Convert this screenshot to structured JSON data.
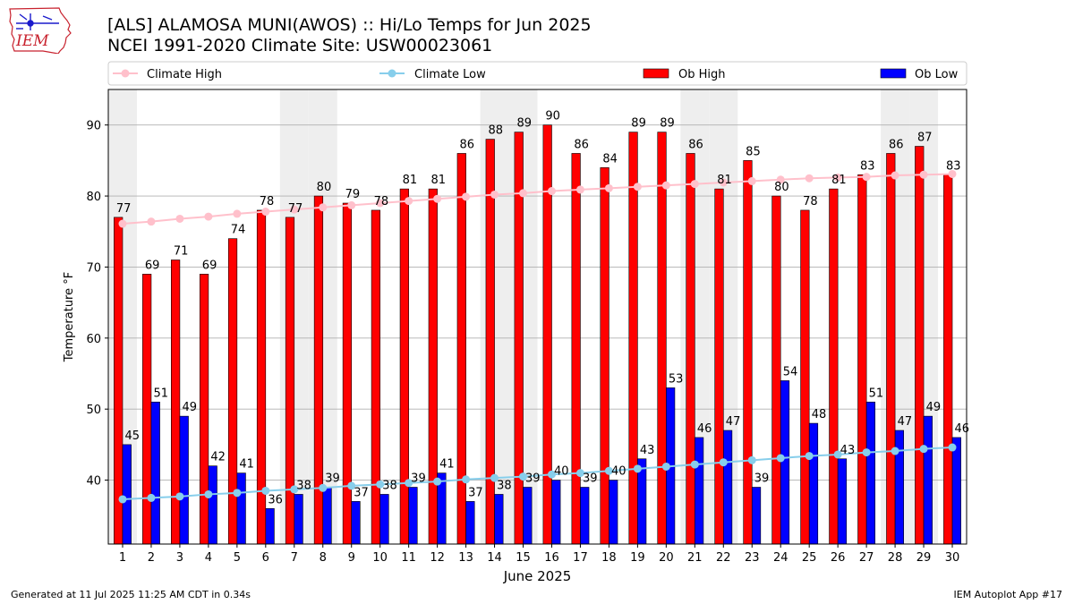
{
  "logo": {
    "text": "IEM",
    "colors": {
      "outline": "#c8222e",
      "text": "#c8222e",
      "glyph": "#1a1acc"
    }
  },
  "chart_data": {
    "type": "bar",
    "title": "[ALS] ALAMOSA MUNI(AWOS) :: Hi/Lo Temps for Jun 2025",
    "subtitle": "NCEI 1991-2020 Climate Site: USW00023061",
    "xlabel": "June 2025",
    "ylabel": "Temperature °F",
    "ylim": [
      31,
      95
    ],
    "yticks": [
      40,
      50,
      60,
      70,
      80,
      90
    ],
    "grid": "horizontal",
    "legend_placement": "top",
    "categories": [
      "1",
      "2",
      "3",
      "4",
      "5",
      "6",
      "7",
      "8",
      "9",
      "10",
      "11",
      "12",
      "13",
      "14",
      "15",
      "16",
      "17",
      "18",
      "19",
      "20",
      "21",
      "22",
      "23",
      "24",
      "25",
      "26",
      "27",
      "28",
      "29",
      "30"
    ],
    "shaded_days": [
      1,
      7,
      8,
      14,
      15,
      21,
      22,
      28,
      29
    ],
    "series": [
      {
        "name": "Climate High",
        "kind": "line",
        "color": "#ffc0cb",
        "values": [
          76.1,
          76.4,
          76.8,
          77.1,
          77.5,
          77.8,
          78.1,
          78.4,
          78.7,
          79.0,
          79.3,
          79.6,
          79.9,
          80.2,
          80.4,
          80.7,
          80.9,
          81.1,
          81.3,
          81.5,
          81.7,
          81.9,
          82.1,
          82.3,
          82.5,
          82.6,
          82.7,
          82.9,
          83.0,
          83.1
        ]
      },
      {
        "name": "Climate Low",
        "kind": "line",
        "color": "#87ceeb",
        "values": [
          37.3,
          37.5,
          37.7,
          38.0,
          38.2,
          38.5,
          38.7,
          38.9,
          39.2,
          39.4,
          39.6,
          39.8,
          40.1,
          40.3,
          40.5,
          40.8,
          41.0,
          41.3,
          41.6,
          41.9,
          42.2,
          42.5,
          42.8,
          43.1,
          43.4,
          43.6,
          43.9,
          44.1,
          44.4,
          44.6
        ]
      },
      {
        "name": "Ob High",
        "kind": "bar",
        "color": "#ff0000",
        "values": [
          77,
          69,
          71,
          69,
          74,
          78,
          77,
          80,
          79,
          78,
          81,
          81,
          86,
          88,
          89,
          90,
          86,
          84,
          89,
          89,
          86,
          81,
          85,
          80,
          78,
          81,
          83,
          86,
          87,
          83
        ]
      },
      {
        "name": "Ob Low",
        "kind": "bar",
        "color": "#0000ff",
        "values": [
          45,
          51,
          49,
          42,
          41,
          36,
          38,
          39,
          37,
          38,
          39,
          41,
          37,
          38,
          39,
          40,
          39,
          40,
          43,
          53,
          46,
          47,
          39,
          54,
          48,
          43,
          51,
          47,
          49,
          46
        ]
      }
    ],
    "colors": {
      "shade": "#eeeeee",
      "grid": "#b0b0b0",
      "legend_border": "#cccccc"
    }
  },
  "footer": {
    "generated": "Generated at 11 Jul 2025 11:25 AM CDT in 0.34s",
    "app": "IEM Autoplot App #17"
  }
}
